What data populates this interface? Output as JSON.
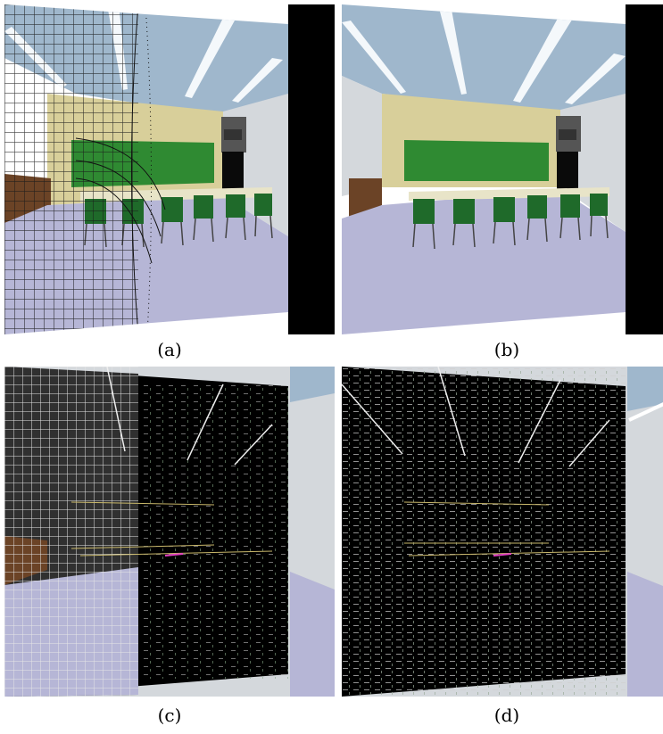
{
  "captions": {
    "a": "(a)",
    "b": "(b)",
    "c": "(c)",
    "d": "(d)"
  },
  "panels": [
    {
      "id": "a",
      "description_icon": "warped-classroom-grid-overlay"
    },
    {
      "id": "b",
      "description_icon": "classroom-render"
    },
    {
      "id": "c",
      "description_icon": "edge-difference-map-with-grid"
    },
    {
      "id": "d",
      "description_icon": "edge-difference-map"
    }
  ],
  "colors": {
    "ceiling": "#9fb7cc",
    "back_wall": "#d8cf9a",
    "side_wall": "#d4d8dc",
    "floor": "#b6b6d6",
    "chalkboard": "#2f8a32",
    "chairs": "#1f6a2a",
    "table_top": "#e8e4c8",
    "background": "#000000"
  }
}
